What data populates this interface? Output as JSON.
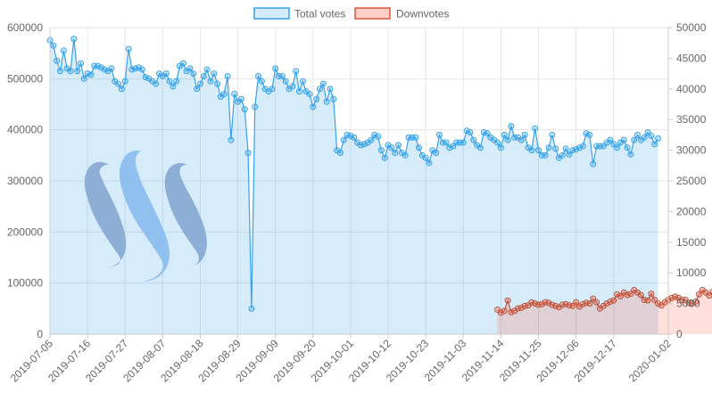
{
  "chart_data": {
    "type": "area",
    "legend": {
      "position": "top-center",
      "items": [
        {
          "label": "Total votes",
          "color": "#36a2eb"
        },
        {
          "label": "Downvotes",
          "color": "#d9573b"
        }
      ]
    },
    "colors": {
      "total_line": "#36a2eb",
      "total_fill": "rgba(54,162,235,0.2)",
      "down_line": "#b5533d",
      "down_fill": "rgba(255,99,71,0.2)",
      "grid": "#e6e6e6"
    },
    "grid": true,
    "y_left": {
      "min": 0,
      "max": 600000,
      "ticks": [
        "0",
        "100000",
        "200000",
        "300000",
        "400000",
        "500000",
        "600000"
      ]
    },
    "y_right": {
      "min": 0,
      "max": 50000,
      "ticks": [
        "0",
        "5000",
        "10000",
        "15000",
        "20000",
        "25000",
        "30000",
        "35000",
        "40000",
        "45000",
        "50000"
      ]
    },
    "x_range": [
      "2019-07-05",
      "2020-01-02"
    ],
    "x_tick_labels": [
      "2019-07-05",
      "2019-07-16",
      "2019-07-27",
      "2019-08-07",
      "2019-08-18",
      "2019-08-29",
      "2019-09-09",
      "2019-09-20",
      "2019-10-01",
      "2019-10-12",
      "2019-10-23",
      "2019-11-03",
      "2019-11-14",
      "2019-11-25",
      "2019-12-06",
      "2019-12-17",
      "2020-01-02"
    ],
    "series": [
      {
        "name": "Total votes",
        "axis": "left",
        "start_date": "2019-07-05",
        "values": [
          575000,
          565000,
          535000,
          515000,
          555000,
          520000,
          515000,
          578000,
          515000,
          530000,
          500000,
          510000,
          508000,
          525000,
          525000,
          522000,
          518000,
          515000,
          520000,
          495000,
          490000,
          480000,
          495000,
          558000,
          518000,
          520000,
          522000,
          518000,
          503000,
          500000,
          495000,
          490000,
          510000,
          505000,
          510000,
          495000,
          485000,
          495000,
          525000,
          530000,
          515000,
          520000,
          510000,
          480000,
          490000,
          505000,
          518000,
          495000,
          510000,
          490000,
          465000,
          470000,
          505000,
          380000,
          470000,
          455000,
          460000,
          440000,
          355000,
          50000,
          445000,
          505000,
          495000,
          480000,
          475000,
          480000,
          520000,
          505000,
          505000,
          495000,
          480000,
          485000,
          515000,
          475000,
          495000,
          475000,
          470000,
          445000,
          460000,
          480000,
          490000,
          455000,
          480000,
          460000,
          360000,
          355000,
          380000,
          390000,
          388000,
          385000,
          375000,
          370000,
          372000,
          375000,
          380000,
          390000,
          387000,
          360000,
          345000,
          370000,
          365000,
          355000,
          370000,
          355000,
          350000,
          385000,
          385000,
          385000,
          365000,
          350000,
          345000,
          335000,
          360000,
          355000,
          390000,
          375000,
          375000,
          365000,
          368000,
          375000,
          375000,
          375000,
          398000,
          395000,
          380000,
          370000,
          365000,
          395000,
          393000,
          385000,
          380000,
          375000,
          365000,
          390000,
          380000,
          407000,
          385000,
          385000,
          380000,
          390000,
          365000,
          360000,
          403000,
          360000,
          350000,
          350000,
          365000,
          390000,
          363000,
          345000,
          350000,
          363000,
          352000,
          360000,
          362000,
          365000,
          368000,
          393000,
          390000,
          333000,
          368000,
          368000,
          368000,
          375000,
          380000,
          372000,
          365000,
          375000,
          380000,
          365000,
          352000,
          380000,
          390000,
          380000,
          385000,
          395000,
          388000,
          372000,
          383000
        ]
      },
      {
        "name": "Downvotes",
        "axis": "right",
        "start_date": "2019-11-13",
        "values": [
          4000,
          3500,
          3800,
          5500,
          3600,
          3800,
          4200,
          4300,
          4600,
          4700,
          5200,
          5000,
          4800,
          4900,
          5200,
          5100,
          4800,
          4600,
          4400,
          4800,
          4900,
          4700,
          4600,
          5200,
          4500,
          4900,
          5100,
          5000,
          5800,
          5200,
          4200,
          4600,
          5000,
          5300,
          5500,
          6500,
          6200,
          6800,
          6400,
          6600,
          7200,
          6800,
          6400,
          5600,
          5500,
          6600,
          5600,
          5000,
          4700,
          5200,
          5600,
          5900,
          6100,
          5900,
          5600,
          5600,
          5100,
          5000,
          5300,
          6500,
          7200,
          6800,
          6300,
          6900,
          5900,
          5200,
          5000,
          5300,
          6100,
          5800,
          5700,
          6200,
          6800,
          7400
        ]
      }
    ]
  }
}
